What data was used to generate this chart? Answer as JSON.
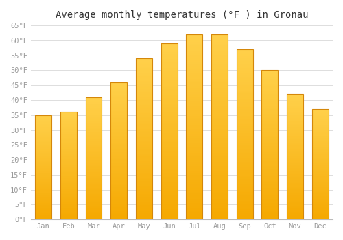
{
  "title": "Average monthly temperatures (°F ) in Gronau",
  "months": [
    "Jan",
    "Feb",
    "Mar",
    "Apr",
    "May",
    "Jun",
    "Jul",
    "Aug",
    "Sep",
    "Oct",
    "Nov",
    "Dec"
  ],
  "values": [
    35,
    36,
    41,
    46,
    54,
    59,
    62,
    62,
    57,
    50,
    42,
    37
  ],
  "bar_color_top": "#FFD04A",
  "bar_color_bottom": "#F5A800",
  "bar_edge_color": "#D4870A",
  "background_color": "#FFFFFF",
  "grid_color": "#DDDDDD",
  "ylim_min": 0,
  "ylim_max": 65,
  "ytick_step": 5,
  "title_fontsize": 10,
  "tick_fontsize": 7.5,
  "tick_color": "#999999",
  "font_family": "monospace"
}
